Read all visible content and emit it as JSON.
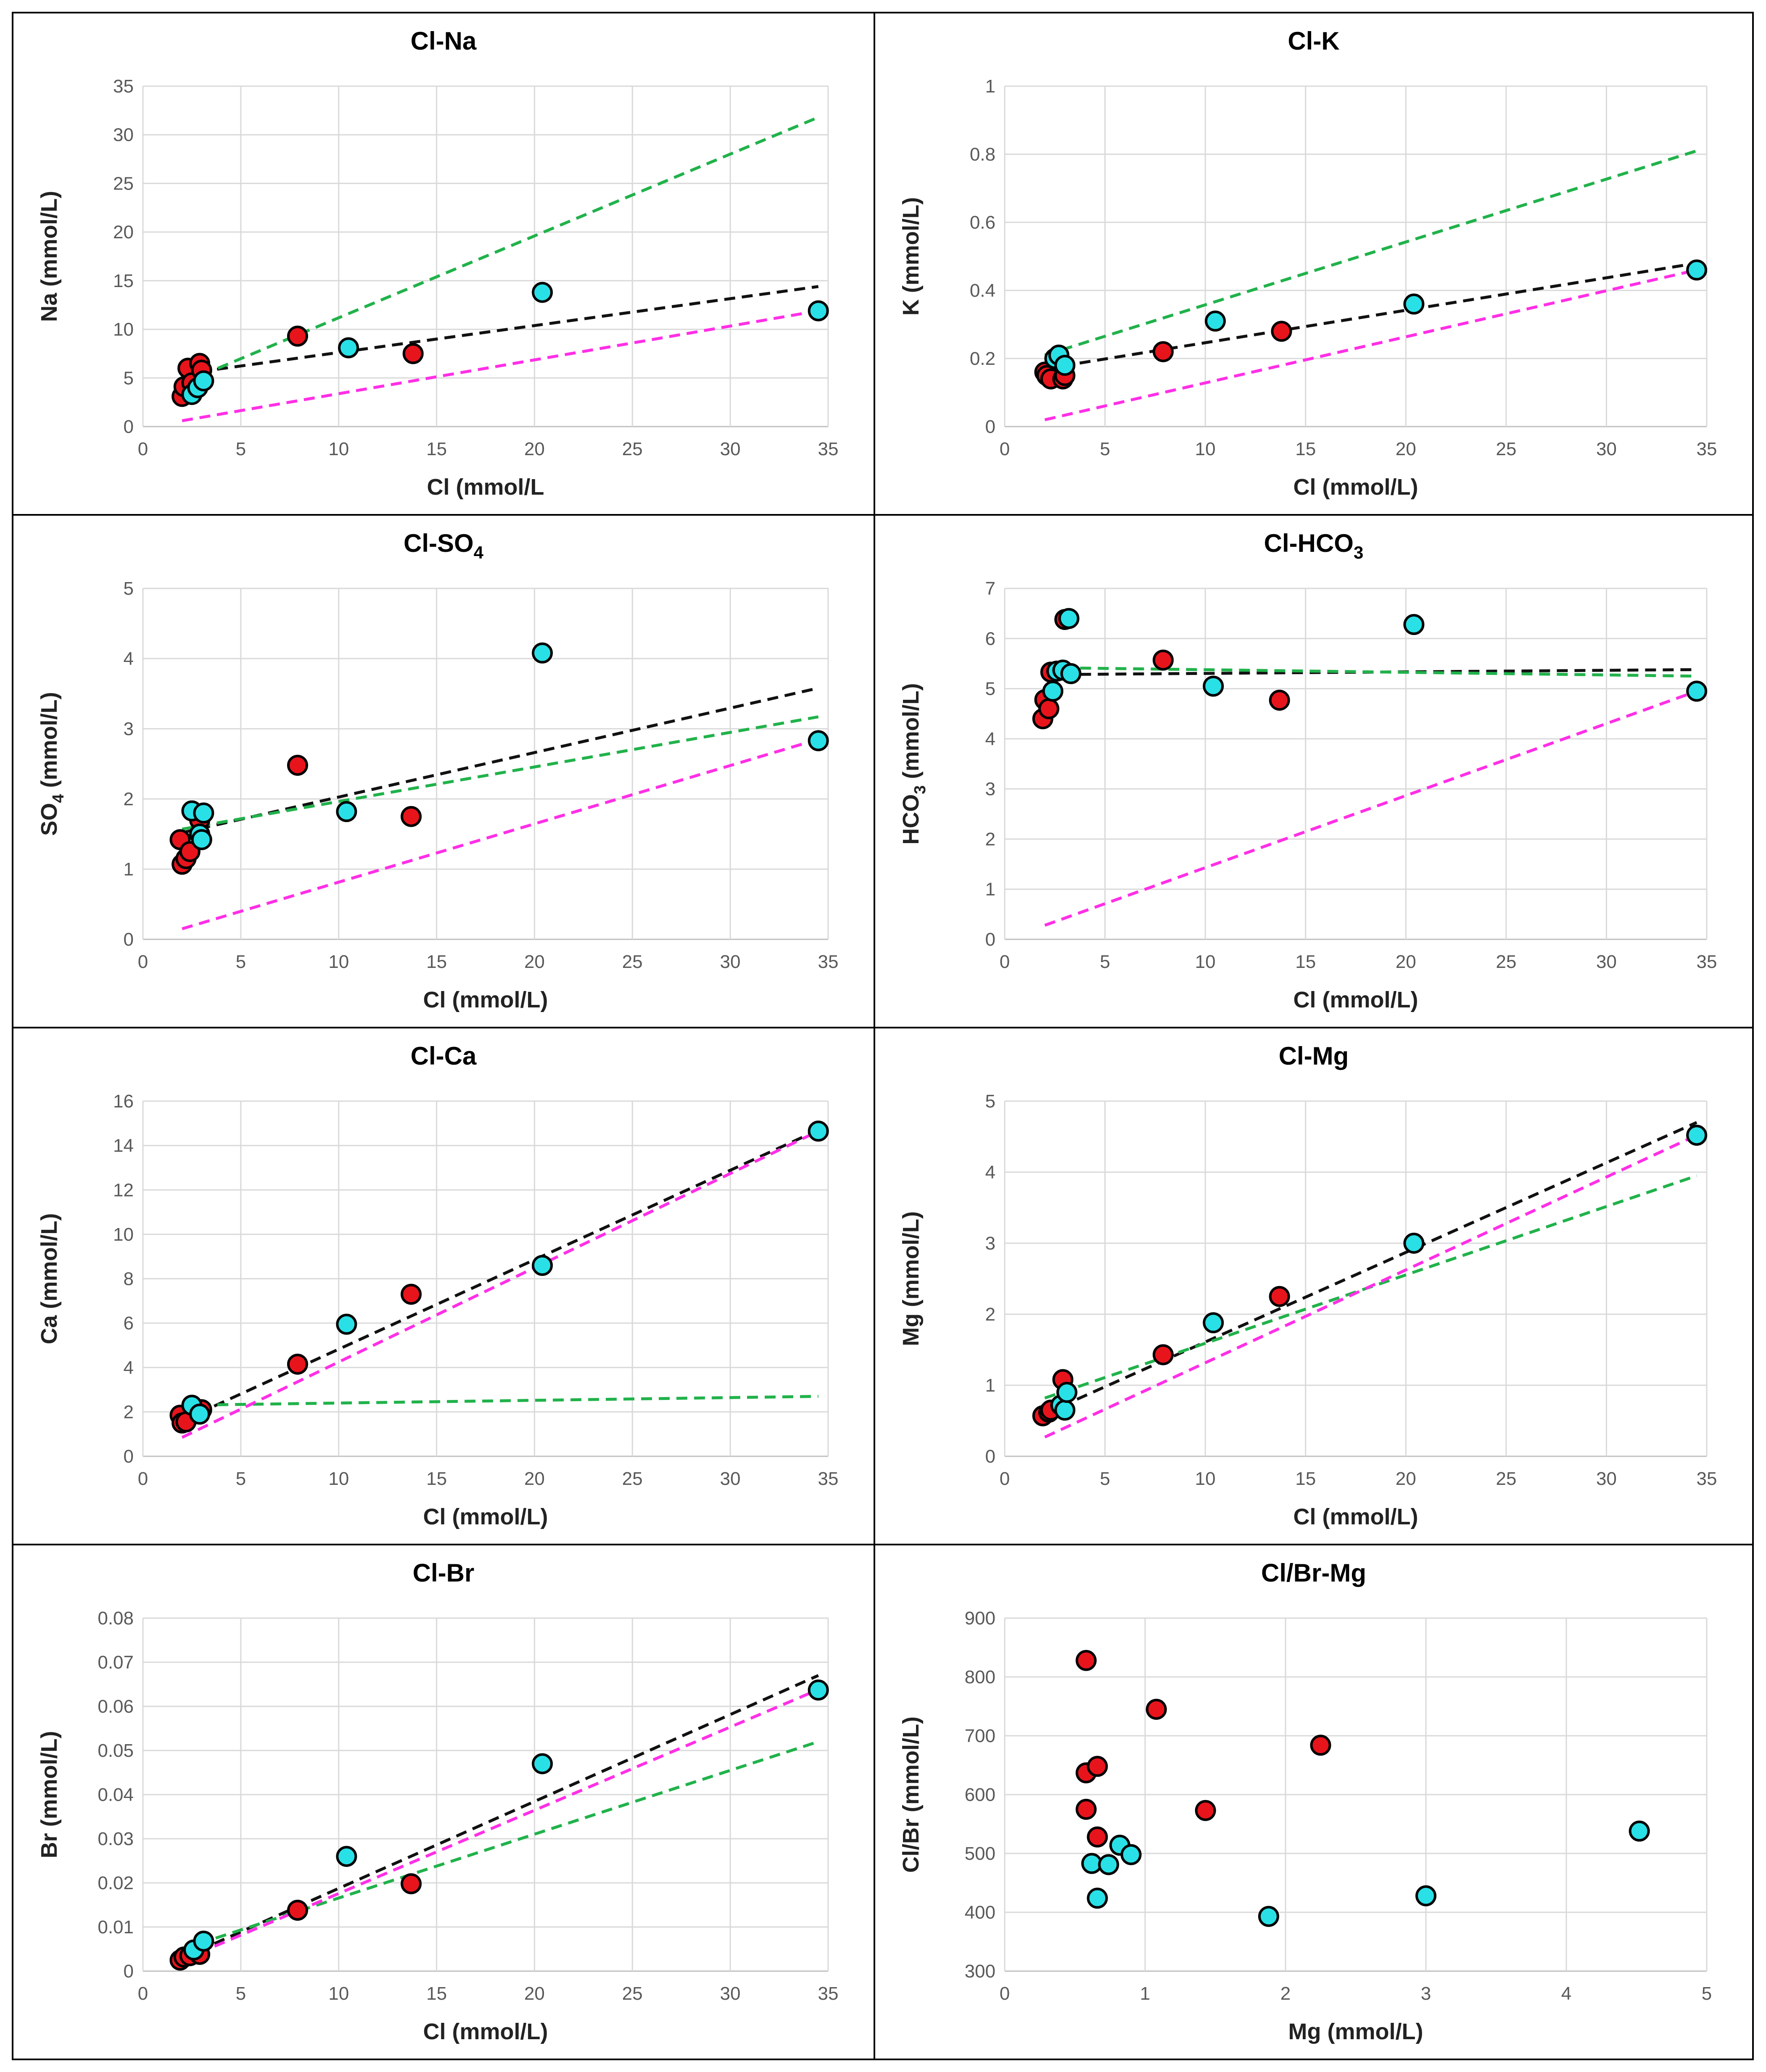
{
  "colors": {
    "group_red": "#e8141c",
    "group_cyan": "#29e0e6",
    "trend_black": "#111111",
    "trend_green": "#21b24b",
    "trend_magenta": "#ff2fe6",
    "frame": "#000000",
    "grid": "#d9d9d9"
  },
  "chart_data": [
    {
      "id": "cl-na",
      "type": "scatter",
      "title": "Cl-Na",
      "title_sub": "",
      "xlabel": "Cl (mmol/L",
      "ylabel": "Na (mmol/L)",
      "ylabel_sub": "",
      "xlim": [
        0,
        35
      ],
      "ylim": [
        0,
        35
      ],
      "xticks": [
        0,
        5,
        10,
        15,
        20,
        25,
        30,
        35
      ],
      "yticks": [
        0,
        5,
        10,
        15,
        20,
        25,
        30,
        35
      ],
      "tick_labels_y": [
        "0",
        "5",
        "10",
        "15",
        "20",
        "25",
        "30",
        "35"
      ],
      "series": [
        {
          "name": "red",
          "color": "#e8141c",
          "points": [
            [
              2.0,
              3.1
            ],
            [
              2.1,
              4.1
            ],
            [
              2.3,
              6.0
            ],
            [
              2.5,
              4.5
            ],
            [
              2.9,
              6.5
            ],
            [
              3.0,
              5.8
            ],
            [
              7.9,
              9.3
            ],
            [
              13.8,
              7.5
            ]
          ]
        },
        {
          "name": "cyan",
          "color": "#29e0e6",
          "points": [
            [
              2.5,
              3.3
            ],
            [
              2.8,
              4.0
            ],
            [
              3.1,
              4.7
            ],
            [
              10.5,
              8.1
            ],
            [
              20.4,
              13.8
            ],
            [
              34.5,
              11.9
            ]
          ]
        }
      ],
      "trendlines": [
        {
          "name": "black",
          "color": "#111111",
          "from": [
            2.0,
            5.4
          ],
          "to": [
            34.5,
            14.4
          ]
        },
        {
          "name": "green",
          "color": "#21b24b",
          "from": [
            3.0,
            5.3
          ],
          "to": [
            34.5,
            31.8
          ]
        },
        {
          "name": "magenta",
          "color": "#ff2fe6",
          "from": [
            2.0,
            0.6
          ],
          "to": [
            34.5,
            11.9
          ]
        }
      ]
    },
    {
      "id": "cl-k",
      "type": "scatter",
      "title": "Cl-K",
      "title_sub": "",
      "xlabel": "Cl (mmol/L)",
      "ylabel": "K (mmol/L)",
      "ylabel_sub": "",
      "xlim": [
        0,
        35
      ],
      "ylim": [
        0,
        1
      ],
      "xticks": [
        0,
        5,
        10,
        15,
        20,
        25,
        30,
        35
      ],
      "yticks": [
        0,
        0.2,
        0.4,
        0.6,
        0.8,
        1
      ],
      "tick_labels_y": [
        "0",
        "0.2",
        "0.4",
        "0.6",
        "0.8",
        "1"
      ],
      "series": [
        {
          "name": "red",
          "color": "#e8141c",
          "points": [
            [
              2.0,
              0.16
            ],
            [
              2.1,
              0.15
            ],
            [
              2.3,
              0.14
            ],
            [
              2.9,
              0.14
            ],
            [
              3.0,
              0.15
            ],
            [
              7.9,
              0.22
            ],
            [
              13.8,
              0.28
            ]
          ]
        },
        {
          "name": "cyan",
          "color": "#29e0e6",
          "points": [
            [
              2.5,
              0.2
            ],
            [
              2.7,
              0.21
            ],
            [
              3.0,
              0.18
            ],
            [
              10.5,
              0.31
            ],
            [
              20.4,
              0.36
            ],
            [
              34.5,
              0.46
            ]
          ]
        }
      ],
      "trendlines": [
        {
          "name": "black",
          "color": "#111111",
          "from": [
            2.0,
            0.17
          ],
          "to": [
            34.5,
            0.48
          ]
        },
        {
          "name": "green",
          "color": "#21b24b",
          "from": [
            2.0,
            0.21
          ],
          "to": [
            34.5,
            0.81
          ]
        },
        {
          "name": "magenta",
          "color": "#ff2fe6",
          "from": [
            2.0,
            0.02
          ],
          "to": [
            34.5,
            0.46
          ]
        }
      ]
    },
    {
      "id": "cl-so4",
      "type": "scatter",
      "title": "Cl-SO",
      "title_sub": "4",
      "xlabel": "Cl (mmol/L)",
      "ylabel": "SO",
      "ylabel_sub": "4",
      "ylabel_tail": " (mmol/L)",
      "xlim": [
        0,
        35
      ],
      "ylim": [
        0,
        5
      ],
      "xticks": [
        0,
        5,
        10,
        15,
        20,
        25,
        30,
        35
      ],
      "yticks": [
        0,
        1,
        2,
        3,
        4,
        5
      ],
      "tick_labels_y": [
        "0",
        "1",
        "2",
        "3",
        "4",
        "5"
      ],
      "series": [
        {
          "name": "red",
          "color": "#e8141c",
          "points": [
            [
              1.9,
              1.42
            ],
            [
              2.0,
              1.07
            ],
            [
              2.2,
              1.15
            ],
            [
              2.4,
              1.25
            ],
            [
              2.9,
              1.7
            ],
            [
              7.9,
              2.48
            ],
            [
              13.7,
              1.75
            ]
          ]
        },
        {
          "name": "cyan",
          "color": "#29e0e6",
          "points": [
            [
              2.5,
              1.83
            ],
            [
              2.9,
              1.5
            ],
            [
              3.0,
              1.42
            ],
            [
              3.1,
              1.8
            ],
            [
              10.4,
              1.82
            ],
            [
              20.4,
              4.08
            ],
            [
              34.5,
              2.83
            ]
          ]
        }
      ],
      "trendlines": [
        {
          "name": "black",
          "color": "#111111",
          "from": [
            2.0,
            1.52
          ],
          "to": [
            34.5,
            3.58
          ]
        },
        {
          "name": "green",
          "color": "#21b24b",
          "from": [
            2.0,
            1.57
          ],
          "to": [
            34.5,
            3.17
          ]
        },
        {
          "name": "magenta",
          "color": "#ff2fe6",
          "from": [
            2.0,
            0.15
          ],
          "to": [
            34.5,
            2.85
          ]
        }
      ]
    },
    {
      "id": "cl-hco3",
      "type": "scatter",
      "title": "Cl-HCO",
      "title_sub": "3",
      "xlabel": "Cl (mmol/L)",
      "ylabel": "HCO",
      "ylabel_sub": "3",
      "ylabel_tail": "  (mmol/L)",
      "xlim": [
        0,
        35
      ],
      "ylim": [
        0,
        7
      ],
      "xticks": [
        0,
        5,
        10,
        15,
        20,
        25,
        30,
        35
      ],
      "yticks": [
        0,
        1,
        2,
        3,
        4,
        5,
        6,
        7
      ],
      "tick_labels_y": [
        "0",
        "1",
        "2",
        "3",
        "4",
        "5",
        "6",
        "7"
      ],
      "series": [
        {
          "name": "red",
          "color": "#e8141c",
          "points": [
            [
              1.9,
              4.4
            ],
            [
              2.0,
              4.78
            ],
            [
              2.2,
              4.6
            ],
            [
              2.3,
              5.33
            ],
            [
              3.0,
              6.38
            ],
            [
              7.9,
              5.57
            ],
            [
              13.7,
              4.77
            ]
          ]
        },
        {
          "name": "cyan",
          "color": "#29e0e6",
          "points": [
            [
              2.4,
              4.95
            ],
            [
              2.6,
              5.35
            ],
            [
              2.9,
              5.37
            ],
            [
              3.2,
              6.4
            ],
            [
              3.3,
              5.3
            ],
            [
              10.4,
              5.05
            ],
            [
              20.4,
              6.28
            ],
            [
              34.5,
              4.95
            ]
          ]
        }
      ],
      "trendlines": [
        {
          "name": "black",
          "color": "#111111",
          "from": [
            2.0,
            5.28
          ],
          "to": [
            34.5,
            5.38
          ]
        },
        {
          "name": "green",
          "color": "#21b24b",
          "from": [
            2.0,
            5.42
          ],
          "to": [
            34.5,
            5.25
          ]
        },
        {
          "name": "magenta",
          "color": "#ff2fe6",
          "from": [
            2.0,
            0.28
          ],
          "to": [
            34.5,
            4.95
          ]
        }
      ]
    },
    {
      "id": "cl-ca",
      "type": "scatter",
      "title": "Cl-Ca",
      "title_sub": "",
      "xlabel": "Cl (mmol/L)",
      "ylabel": "Ca (mmol/L)",
      "ylabel_sub": "",
      "xlim": [
        0,
        35
      ],
      "ylim": [
        0,
        16
      ],
      "xticks": [
        0,
        5,
        10,
        15,
        20,
        25,
        30,
        35
      ],
      "yticks": [
        0,
        2,
        4,
        6,
        8,
        10,
        12,
        14,
        16
      ],
      "tick_labels_y": [
        "0",
        "2",
        "4",
        "6",
        "8",
        "10",
        "12",
        "14",
        "16"
      ],
      "series": [
        {
          "name": "red",
          "color": "#e8141c",
          "points": [
            [
              1.9,
              1.85
            ],
            [
              2.0,
              1.5
            ],
            [
              2.2,
              1.55
            ],
            [
              2.9,
              1.95
            ],
            [
              3.0,
              2.1
            ],
            [
              7.9,
              4.15
            ],
            [
              13.7,
              7.3
            ]
          ]
        },
        {
          "name": "cyan",
          "color": "#29e0e6",
          "points": [
            [
              2.5,
              2.3
            ],
            [
              2.9,
              1.9
            ],
            [
              10.4,
              5.95
            ],
            [
              20.4,
              8.6
            ],
            [
              34.5,
              14.65
            ]
          ]
        }
      ],
      "trendlines": [
        {
          "name": "black",
          "color": "#111111",
          "from": [
            2.0,
            1.6
          ],
          "to": [
            34.5,
            14.7
          ]
        },
        {
          "name": "green",
          "color": "#21b24b",
          "from": [
            2.0,
            2.3
          ],
          "to": [
            34.5,
            2.7
          ]
        },
        {
          "name": "magenta",
          "color": "#ff2fe6",
          "from": [
            2.0,
            0.85
          ],
          "to": [
            34.5,
            14.65
          ]
        }
      ]
    },
    {
      "id": "cl-mg",
      "type": "scatter",
      "title": "Cl-Mg",
      "title_sub": "",
      "xlabel": "Cl (mmol/L)",
      "ylabel": "Mg (mmol/L)",
      "ylabel_sub": "",
      "xlim": [
        0,
        35
      ],
      "ylim": [
        0,
        5
      ],
      "xticks": [
        0,
        5,
        10,
        15,
        20,
        25,
        30,
        35
      ],
      "yticks": [
        0,
        1,
        2,
        3,
        4,
        5
      ],
      "tick_labels_y": [
        "0",
        "1",
        "2",
        "3",
        "4",
        "5"
      ],
      "series": [
        {
          "name": "red",
          "color": "#e8141c",
          "points": [
            [
              1.9,
              0.57
            ],
            [
              2.2,
              0.62
            ],
            [
              2.3,
              0.65
            ],
            [
              2.9,
              1.08
            ],
            [
              7.9,
              1.43
            ],
            [
              13.7,
              2.25
            ]
          ]
        },
        {
          "name": "cyan",
          "color": "#29e0e6",
          "points": [
            [
              2.8,
              0.72
            ],
            [
              3.0,
              0.65
            ],
            [
              3.1,
              0.9
            ],
            [
              10.4,
              1.88
            ],
            [
              20.4,
              3.0
            ],
            [
              34.5,
              4.52
            ]
          ]
        }
      ],
      "trendlines": [
        {
          "name": "black",
          "color": "#111111",
          "from": [
            2.0,
            0.6
          ],
          "to": [
            34.5,
            4.7
          ]
        },
        {
          "name": "green",
          "color": "#21b24b",
          "from": [
            2.0,
            0.82
          ],
          "to": [
            34.5,
            3.95
          ]
        },
        {
          "name": "magenta",
          "color": "#ff2fe6",
          "from": [
            2.0,
            0.27
          ],
          "to": [
            34.5,
            4.52
          ]
        }
      ]
    },
    {
      "id": "cl-br",
      "type": "scatter",
      "title": "Cl-Br",
      "title_sub": "",
      "xlabel": "Cl (mmol/L)",
      "ylabel": "Br (mmol/L)",
      "ylabel_sub": "",
      "xlim": [
        0,
        35
      ],
      "ylim": [
        0,
        0.08
      ],
      "xticks": [
        0,
        5,
        10,
        15,
        20,
        25,
        30,
        35
      ],
      "yticks": [
        0,
        0.01,
        0.02,
        0.03,
        0.04,
        0.05,
        0.06,
        0.07,
        0.08
      ],
      "tick_labels_y": [
        "0",
        "0.01",
        "0.02",
        "0.03",
        "0.04",
        "0.05",
        "0.06",
        "0.07",
        "0.08"
      ],
      "series": [
        {
          "name": "red",
          "color": "#e8141c",
          "points": [
            [
              1.9,
              0.0025
            ],
            [
              2.1,
              0.0032
            ],
            [
              2.4,
              0.0035
            ],
            [
              2.9,
              0.0038
            ],
            [
              7.9,
              0.0138
            ],
            [
              13.7,
              0.0198
            ]
          ]
        },
        {
          "name": "cyan",
          "color": "#29e0e6",
          "points": [
            [
              2.6,
              0.0048
            ],
            [
              3.1,
              0.0068
            ],
            [
              10.4,
              0.026
            ],
            [
              20.4,
              0.047
            ],
            [
              34.5,
              0.0637
            ]
          ]
        }
      ],
      "trendlines": [
        {
          "name": "black",
          "color": "#111111",
          "from": [
            2.0,
            0.003
          ],
          "to": [
            34.5,
            0.067
          ]
        },
        {
          "name": "green",
          "color": "#21b24b",
          "from": [
            2.0,
            0.005
          ],
          "to": [
            34.5,
            0.052
          ]
        },
        {
          "name": "magenta",
          "color": "#ff2fe6",
          "from": [
            2.0,
            0.0025
          ],
          "to": [
            34.5,
            0.0638
          ]
        }
      ]
    },
    {
      "id": "clbr-mg",
      "type": "scatter",
      "title": "Cl/Br-Mg",
      "title_sub": "",
      "xlabel": "Mg (mmol/L)",
      "ylabel": "Cl/Br (mmol/L)",
      "ylabel_sub": "",
      "xlim": [
        0,
        5
      ],
      "ylim": [
        300,
        900
      ],
      "xticks": [
        0,
        1,
        2,
        3,
        4,
        5
      ],
      "yticks": [
        300,
        400,
        500,
        600,
        700,
        800,
        900
      ],
      "tick_labels_y": [
        "300",
        "400",
        "500",
        "600",
        "700",
        "800",
        "900"
      ],
      "series": [
        {
          "name": "red",
          "color": "#e8141c",
          "points": [
            [
              0.58,
              828
            ],
            [
              0.58,
              637
            ],
            [
              0.58,
              575
            ],
            [
              0.66,
              648
            ],
            [
              0.66,
              528
            ],
            [
              1.08,
              745
            ],
            [
              1.43,
              573
            ],
            [
              2.25,
              684
            ]
          ]
        },
        {
          "name": "cyan",
          "color": "#29e0e6",
          "points": [
            [
              0.62,
              483
            ],
            [
              0.66,
              424
            ],
            [
              0.74,
              481
            ],
            [
              0.82,
              514
            ],
            [
              0.9,
              498
            ],
            [
              1.88,
              393
            ],
            [
              3.0,
              428
            ],
            [
              4.52,
              538
            ]
          ]
        }
      ],
      "trendlines": []
    }
  ]
}
